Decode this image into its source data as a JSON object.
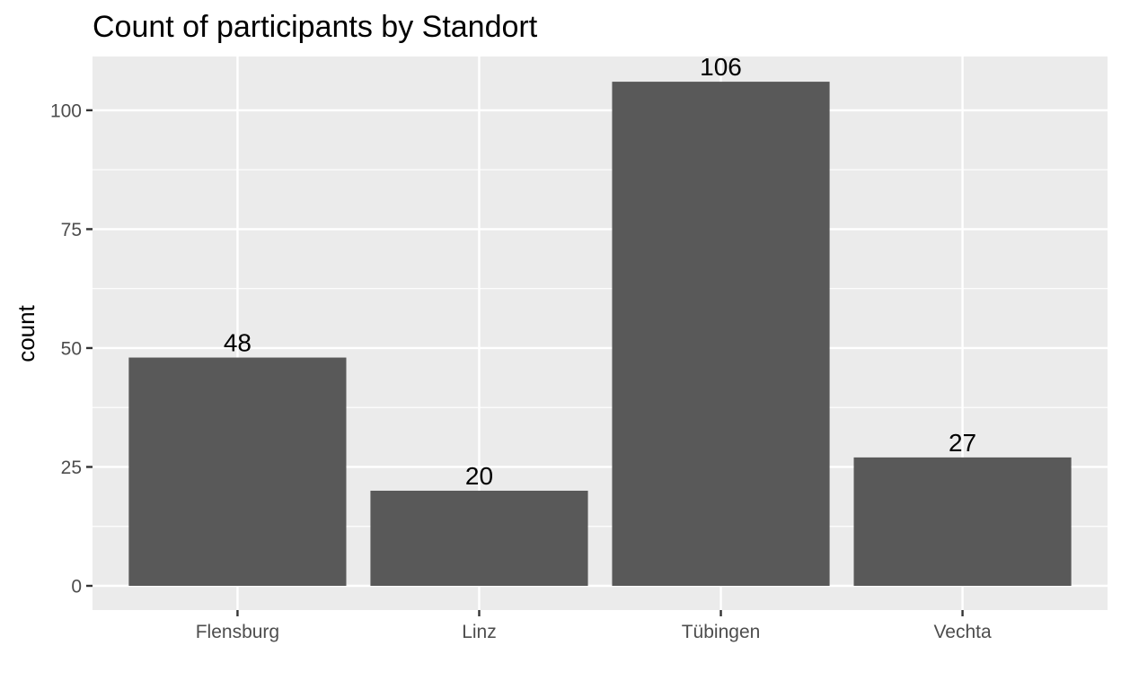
{
  "chart_data": {
    "type": "bar",
    "title": "Count of participants by Standort",
    "xlabel": "",
    "ylabel": "count",
    "categories": [
      "Flensburg",
      "Linz",
      "Tübingen",
      "Vechta"
    ],
    "values": [
      48,
      20,
      106,
      27
    ],
    "data_labels": [
      "48",
      "20",
      "106",
      "27"
    ],
    "ylim": [
      0,
      111.3
    ],
    "yticks": [
      0,
      25,
      50,
      75,
      100
    ],
    "ytick_labels": [
      "0",
      "25",
      "50",
      "75",
      "100"
    ],
    "grid": true,
    "legend": "none",
    "colors": {
      "bar": "#595959",
      "panel": "#ebebeb",
      "grid": "#ffffff",
      "tick": "#333333"
    }
  }
}
